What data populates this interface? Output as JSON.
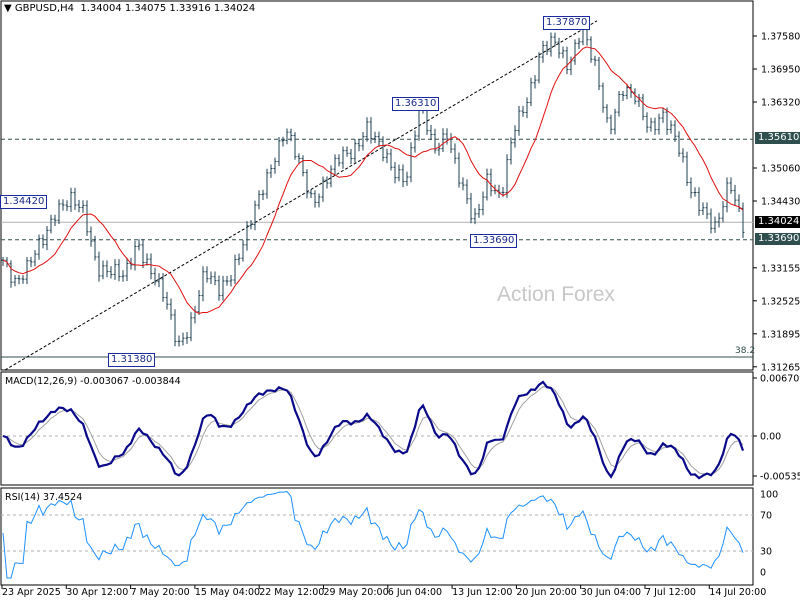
{
  "header": {
    "symbol": "GBPUSD,H4",
    "ohlc": "1.34004 1.34075 1.33916 1.34024",
    "triangle_icon": "triangle-down"
  },
  "watermark": "Action Forex",
  "annotations": {
    "high": "1.37870",
    "mid_high": "1.36310",
    "left_high": "1.34420",
    "low_mid": "1.33690",
    "low": "1.31380",
    "fib": "38.2"
  },
  "price_labels": {
    "resistance": "1.35610",
    "current": "1.34024",
    "support": "1.33690"
  },
  "colors": {
    "bars": "#1f3f4f",
    "ma": "#e01010",
    "macd": "#0a0a8a",
    "signal": "#a0a0a0",
    "rsi": "#1e90ff",
    "label_bg": "#2f4f4f",
    "current_bg": "#000000"
  },
  "chart_data": [
    {
      "type": "ohlc",
      "title": "GBPUSD,H4",
      "ytick_labels": [
        "1.37580",
        "1.36950",
        "1.36320",
        "1.35060",
        "1.34430",
        "1.33155",
        "1.32525",
        "1.31895",
        "1.31265"
      ],
      "yticks": [
        1.3758,
        1.3695,
        1.3632,
        1.3506,
        1.3443,
        1.33155,
        1.32525,
        1.31895,
        1.31265
      ],
      "ylim": [
        1.3124,
        1.3947
      ],
      "xtick_labels": [
        "23 Apr 2025",
        "30 Apr 12:00",
        "7 May 20:00",
        "15 May 04:00",
        "22 May 12:00",
        "29 May 20:00",
        "6 Jun 04:00",
        "13 Jun 12:00",
        "20 Jun 20:00",
        "30 Jun 04:00",
        "7 Jul 12:00",
        "14 Jul 20:00"
      ],
      "close_keypoints": [
        1.333,
        1.3292,
        1.3321,
        1.3368,
        1.3435,
        1.3445,
        1.3416,
        1.3321,
        1.3311,
        1.3292,
        1.3368,
        1.3311,
        1.3254,
        1.3168,
        1.3216,
        1.3302,
        1.3273,
        1.3311,
        1.3368,
        1.3445,
        1.3521,
        1.3578,
        1.3512,
        1.3445,
        1.3483,
        1.3521,
        1.354,
        1.3588,
        1.354,
        1.3502,
        1.3493,
        1.3626,
        1.354,
        1.3578,
        1.3474,
        1.3397,
        1.3493,
        1.3445,
        1.3578,
        1.3645,
        1.3731,
        1.3741,
        1.3703,
        1.3779,
        1.3693,
        1.3578,
        1.3664,
        1.3636,
        1.3578,
        1.3616,
        1.3559,
        1.3464,
        1.3435,
        1.3388,
        1.3474,
        1.3402
      ],
      "horizontal_levels": {
        "resistance": 1.3561,
        "support": 1.3369,
        "current": 1.34024,
        "fib_38_2": 1.3138
      },
      "trendline": {
        "from": 1.3125,
        "to": 1.3787
      }
    },
    {
      "type": "line",
      "title": "MACD(12,26,9) -0.003067 -0.003844",
      "ytick_labels": [
        "0.006709",
        "0.00",
        "-0.00535"
      ],
      "yticks": [
        0.006709,
        0,
        -0.00535
      ]
    },
    {
      "type": "line",
      "title": "RSI(14) 37.4524",
      "ytick_labels": [
        "100",
        "70",
        "30",
        "0"
      ],
      "yticks": [
        100,
        70,
        30,
        0
      ]
    }
  ]
}
